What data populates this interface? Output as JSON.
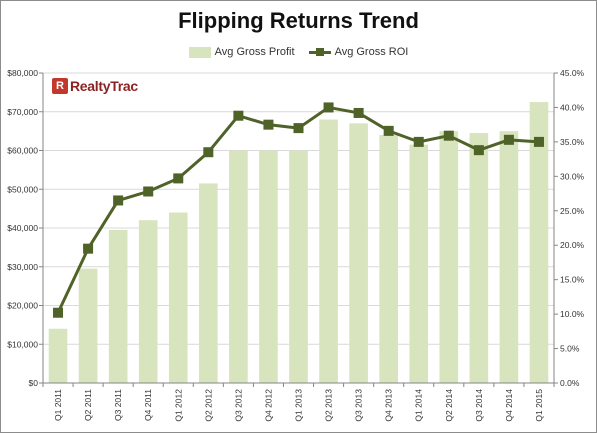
{
  "logo": {
    "icon": "R",
    "text": "RealtyTrac"
  },
  "chart_data": {
    "type": "bar",
    "title": "Flipping Returns Trend",
    "categories": [
      "Q1 2011",
      "Q2 2011",
      "Q3 2011",
      "Q4 2011",
      "Q1 2012",
      "Q2 2012",
      "Q3 2012",
      "Q4 2012",
      "Q1 2013",
      "Q2 2013",
      "Q3 2013",
      "Q4 2013",
      "Q1 2014",
      "Q2 2014",
      "Q3 2014",
      "Q4 2014",
      "Q1 2015"
    ],
    "series": [
      {
        "name": "Avg Gross Profit",
        "type": "bar",
        "axis": "left",
        "color": "#d7e4bd",
        "values": [
          14000,
          29500,
          39500,
          42000,
          44000,
          51500,
          60000,
          60000,
          60000,
          68000,
          67000,
          64000,
          61500,
          65000,
          64500,
          65000,
          72500
        ]
      },
      {
        "name": "Avg Gross ROI",
        "type": "line",
        "axis": "right",
        "color": "#4f6228",
        "values": [
          10.2,
          19.5,
          26.5,
          27.8,
          29.7,
          33.5,
          38.8,
          37.5,
          37.0,
          40.0,
          39.2,
          36.6,
          35.0,
          35.9,
          33.8,
          35.3,
          35.0
        ]
      }
    ],
    "y_left": {
      "min": 0,
      "max": 80000,
      "step": 10000,
      "tick_labels": [
        "$0",
        "$10,000",
        "$20,000",
        "$30,000",
        "$40,000",
        "$50,000",
        "$60,000",
        "$70,000",
        "$80,000"
      ]
    },
    "y_right": {
      "min": 0,
      "max": 45,
      "step": 5,
      "tick_labels": [
        "0.0%",
        "5.0%",
        "10.0%",
        "15.0%",
        "20.0%",
        "25.0%",
        "30.0%",
        "35.0%",
        "40.0%",
        "45.0%"
      ]
    },
    "grid": true,
    "legend": "top-center"
  }
}
